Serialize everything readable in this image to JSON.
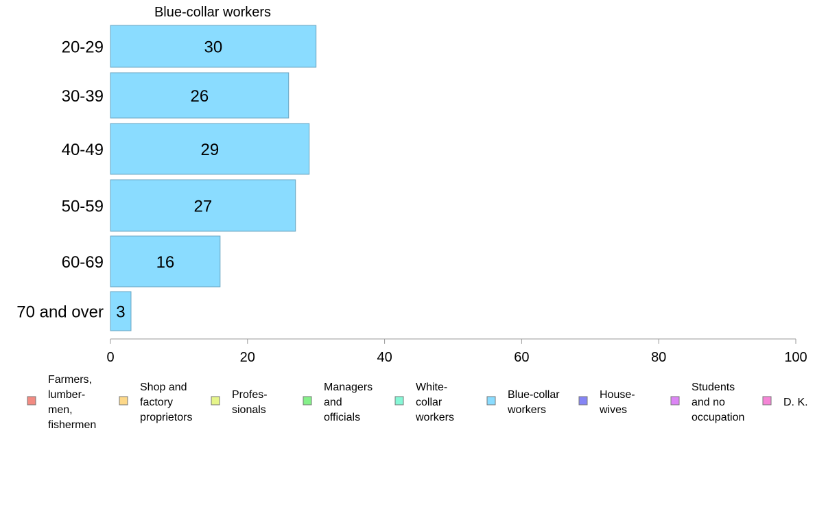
{
  "chart_data": {
    "type": "bar",
    "orientation": "horizontal",
    "title": "Blue-collar workers",
    "categories": [
      "20-29",
      "30-39",
      "40-49",
      "50-59",
      "60-69",
      "70 and over"
    ],
    "series": [
      {
        "name": "Blue-collar workers",
        "values": [
          30,
          26,
          29,
          27,
          16,
          3
        ]
      }
    ],
    "xlim": [
      0,
      100
    ],
    "xticks": [
      0,
      20,
      40,
      60,
      80,
      100
    ],
    "bar_color": "#8adcff",
    "bar_edge_color": "#6aa4c0",
    "grid": false,
    "legend": {
      "placement": "bottom",
      "items": [
        {
          "label": [
            "Farmers,",
            "lumber-",
            "men,",
            "fishermen"
          ],
          "color": "#f28b82"
        },
        {
          "label": [
            "Shop and",
            "factory",
            "proprietors"
          ],
          "color": "#fdd889"
        },
        {
          "label": [
            "Profes-",
            "sionals"
          ],
          "color": "#e6f58a"
        },
        {
          "label": [
            "Managers",
            "and",
            "officials"
          ],
          "color": "#85f08a"
        },
        {
          "label": [
            "White-",
            "collar",
            "workers"
          ],
          "color": "#86f7d6"
        },
        {
          "label": [
            "Blue-collar",
            "workers"
          ],
          "color": "#8adcff"
        },
        {
          "label": [
            "House-",
            "wives"
          ],
          "color": "#8585f5"
        },
        {
          "label": [
            "Students",
            "and no",
            "occupation"
          ],
          "color": "#dc85f5"
        },
        {
          "label": [
            "D. K."
          ],
          "color": "#f585d6"
        }
      ]
    }
  }
}
